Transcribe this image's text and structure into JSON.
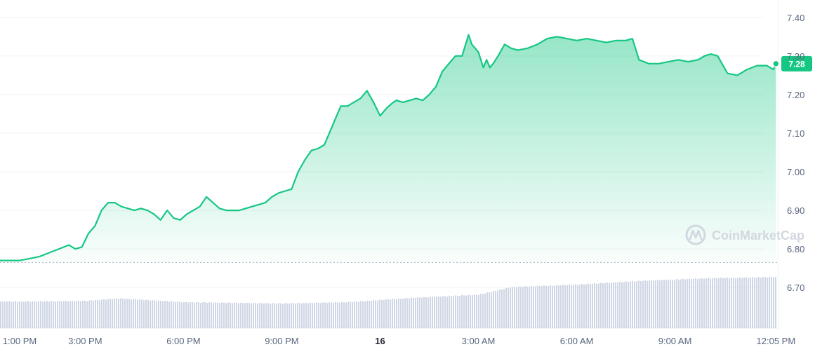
{
  "watermark": "CoinMarketCap",
  "current_price_label": "7.28",
  "colors": {
    "line": "#16c784",
    "fill_top": "#16c784",
    "volume": "#cfd6e4",
    "grid": "#eff2f5",
    "badge": "#16c784"
  },
  "chart_data": {
    "type": "area",
    "title": "",
    "xlabel": "",
    "ylabel": "",
    "y_ticks": [
      "7.40",
      "7.30",
      "7.20",
      "7.10",
      "7.00",
      "6.90",
      "6.80",
      "6.70"
    ],
    "y_tick_values": [
      7.4,
      7.3,
      7.2,
      7.1,
      7.0,
      6.9,
      6.8,
      6.7
    ],
    "x_ticks": [
      {
        "label": "1:00 PM",
        "hour": 0,
        "bold": false
      },
      {
        "label": "3:00 PM",
        "hour": 2,
        "bold": false
      },
      {
        "label": "6:00 PM",
        "hour": 5,
        "bold": false
      },
      {
        "label": "9:00 PM",
        "hour": 8,
        "bold": false
      },
      {
        "label": "16",
        "hour": 11,
        "bold": true
      },
      {
        "label": "3:00 AM",
        "hour": 14,
        "bold": false
      },
      {
        "label": "6:00 AM",
        "hour": 17,
        "bold": false
      },
      {
        "label": "9:00 AM",
        "hour": 20,
        "bold": false
      },
      {
        "label": "12:05 PM",
        "hour": 23.08,
        "bold": false
      }
    ],
    "ylim": [
      6.595,
      7.445
    ],
    "reference_line": 6.765,
    "grid": true,
    "series": [
      {
        "hours": [
          0,
          0.3,
          0.6,
          0.9,
          1.2,
          1.5,
          1.7,
          1.9,
          2.1,
          2.3,
          2.5,
          2.7,
          2.9,
          3.1,
          3.3,
          3.5,
          3.7,
          3.9,
          4.1,
          4.3,
          4.5,
          4.7,
          4.9,
          5.1,
          5.3,
          5.5,
          5.7,
          5.9,
          6.1,
          6.3,
          6.5,
          6.7,
          6.9,
          7.1,
          7.3,
          7.5,
          7.7,
          7.9,
          8.1,
          8.3,
          8.5,
          8.7,
          8.9,
          9.1,
          9.3,
          9.5,
          9.6,
          9.8,
          10.0,
          10.2,
          10.4,
          10.6,
          10.8,
          11.0,
          11.2,
          11.4,
          11.5,
          11.7,
          11.9,
          12.1,
          12.3,
          12.5,
          12.7,
          12.9,
          13.1,
          13.3,
          13.5,
          13.7,
          13.8,
          14.0,
          14.15,
          14.25,
          14.35,
          14.45,
          14.6,
          14.8,
          15.0,
          15.2,
          15.5,
          15.8,
          16.1,
          16.4,
          16.7,
          17.0,
          17.3,
          17.6,
          17.9,
          18.2,
          18.5,
          18.7,
          18.9,
          19.2,
          19.5,
          19.8,
          20.1,
          20.4,
          20.7,
          20.9,
          21.1,
          21.3,
          21.6,
          21.9,
          22.2,
          22.5,
          22.8,
          23.0,
          23.08
        ],
        "values": [
          6.77,
          6.775,
          6.78,
          6.79,
          6.8,
          6.81,
          6.8,
          6.805,
          6.84,
          6.86,
          6.9,
          6.92,
          6.92,
          6.91,
          6.905,
          6.9,
          6.905,
          6.9,
          6.89,
          6.875,
          6.9,
          6.88,
          6.875,
          6.89,
          6.9,
          6.91,
          6.935,
          6.92,
          6.905,
          6.9,
          6.9,
          6.9,
          6.905,
          6.91,
          6.915,
          6.92,
          6.935,
          6.945,
          6.95,
          6.955,
          7.0,
          7.03,
          7.055,
          7.06,
          7.07,
          7.11,
          7.13,
          7.17,
          7.17,
          7.18,
          7.19,
          7.21,
          7.18,
          7.145,
          7.165,
          7.18,
          7.185,
          7.18,
          7.185,
          7.19,
          7.185,
          7.2,
          7.22,
          7.26,
          7.28,
          7.3,
          7.3,
          7.355,
          7.33,
          7.31,
          7.27,
          7.29,
          7.27,
          7.28,
          7.3,
          7.33,
          7.32,
          7.315,
          7.32,
          7.33,
          7.345,
          7.35,
          7.345,
          7.34,
          7.345,
          7.34,
          7.335,
          7.34,
          7.34,
          7.345,
          7.29,
          7.28,
          7.28,
          7.285,
          7.29,
          7.285,
          7.29,
          7.3,
          7.305,
          7.3,
          7.255,
          7.25,
          7.265,
          7.275,
          7.275,
          7.265,
          7.28
        ]
      }
    ],
    "volume": {
      "hours": [
        0,
        2,
        3,
        5,
        8,
        10,
        12,
        14,
        15,
        17,
        19,
        21,
        23.08
      ],
      "relative_height": [
        0.42,
        0.43,
        0.47,
        0.41,
        0.39,
        0.41,
        0.48,
        0.53,
        0.65,
        0.69,
        0.75,
        0.79,
        0.81
      ]
    }
  }
}
